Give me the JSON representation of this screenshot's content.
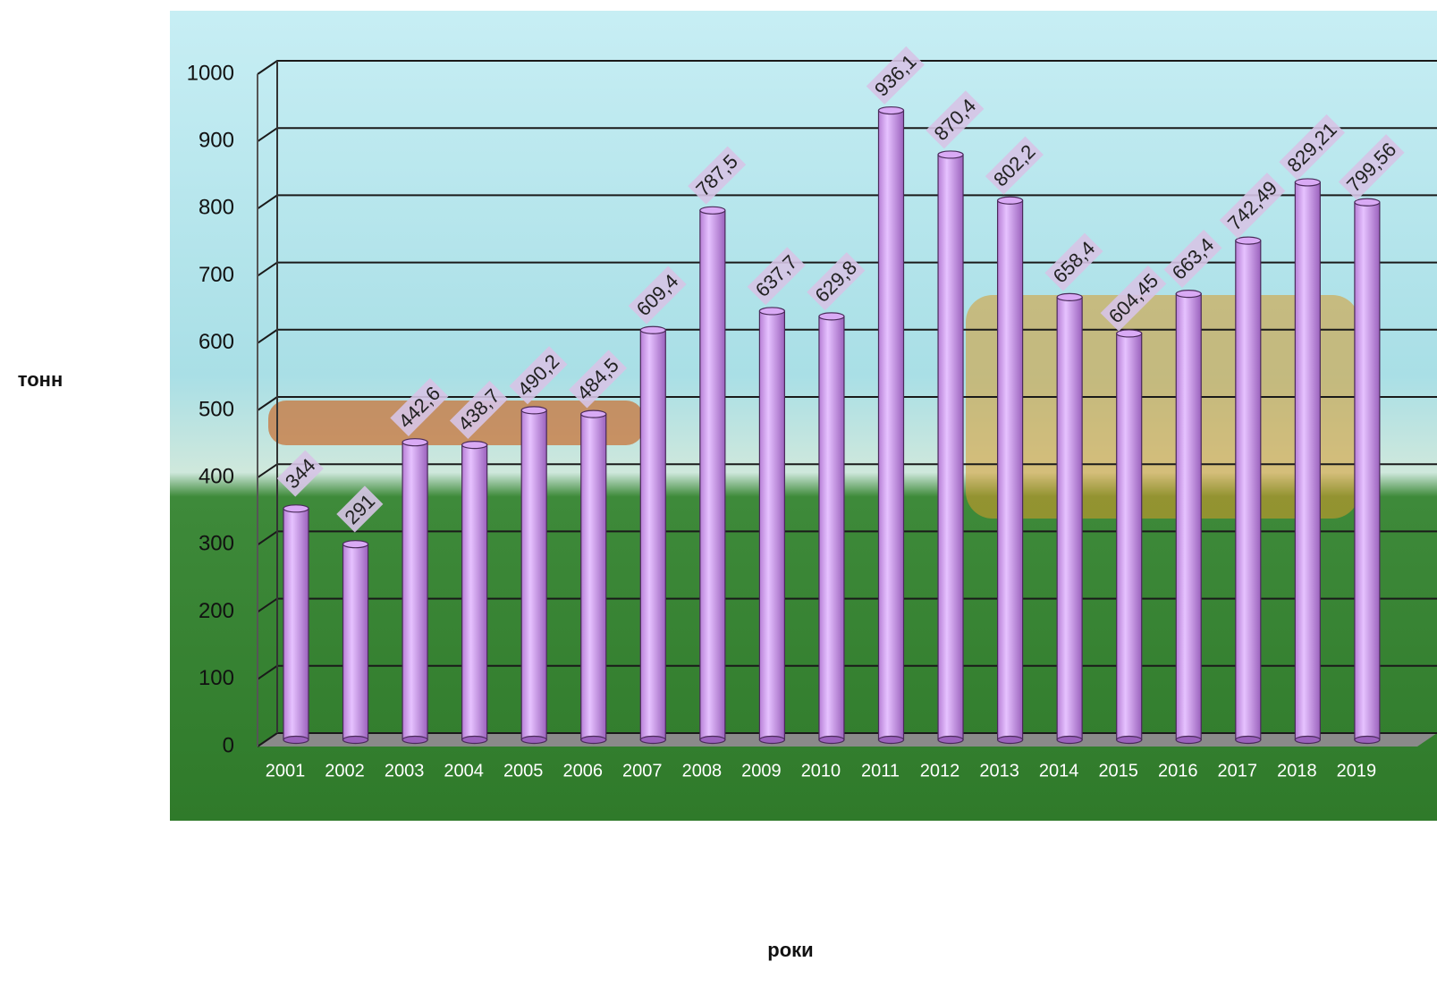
{
  "chart_data": {
    "type": "bar",
    "y_label": "тонн",
    "x_label": "роки",
    "categories": [
      "2001",
      "2002",
      "2003",
      "2004",
      "2005",
      "2006",
      "2007",
      "2008",
      "2009",
      "2010",
      "2011",
      "2012",
      "2013",
      "2014",
      "2015",
      "2016",
      "2017",
      "2018",
      "2019"
    ],
    "values": [
      344,
      291,
      442.6,
      438.7,
      490.2,
      484.5,
      609.4,
      787.5,
      637.7,
      629.8,
      936.1,
      870.4,
      802.2,
      658.4,
      604.45,
      663.4,
      742.49,
      829.21,
      799.56
    ],
    "value_labels": [
      "344",
      "291",
      "442,6",
      "438,7",
      "490,2",
      "484,5",
      "609,4",
      "787,5",
      "637,7",
      "629,8",
      "936,1",
      "870,4",
      "802,2",
      "658,4",
      "604,45",
      "663,4",
      "742,49",
      "829,21",
      "799,56"
    ],
    "color": "#d9aaf5",
    "ylim": [
      0,
      1000
    ],
    "yticks": [
      0,
      100,
      200,
      300,
      400,
      500,
      600,
      700,
      800,
      900,
      1000
    ],
    "grid": true
  }
}
